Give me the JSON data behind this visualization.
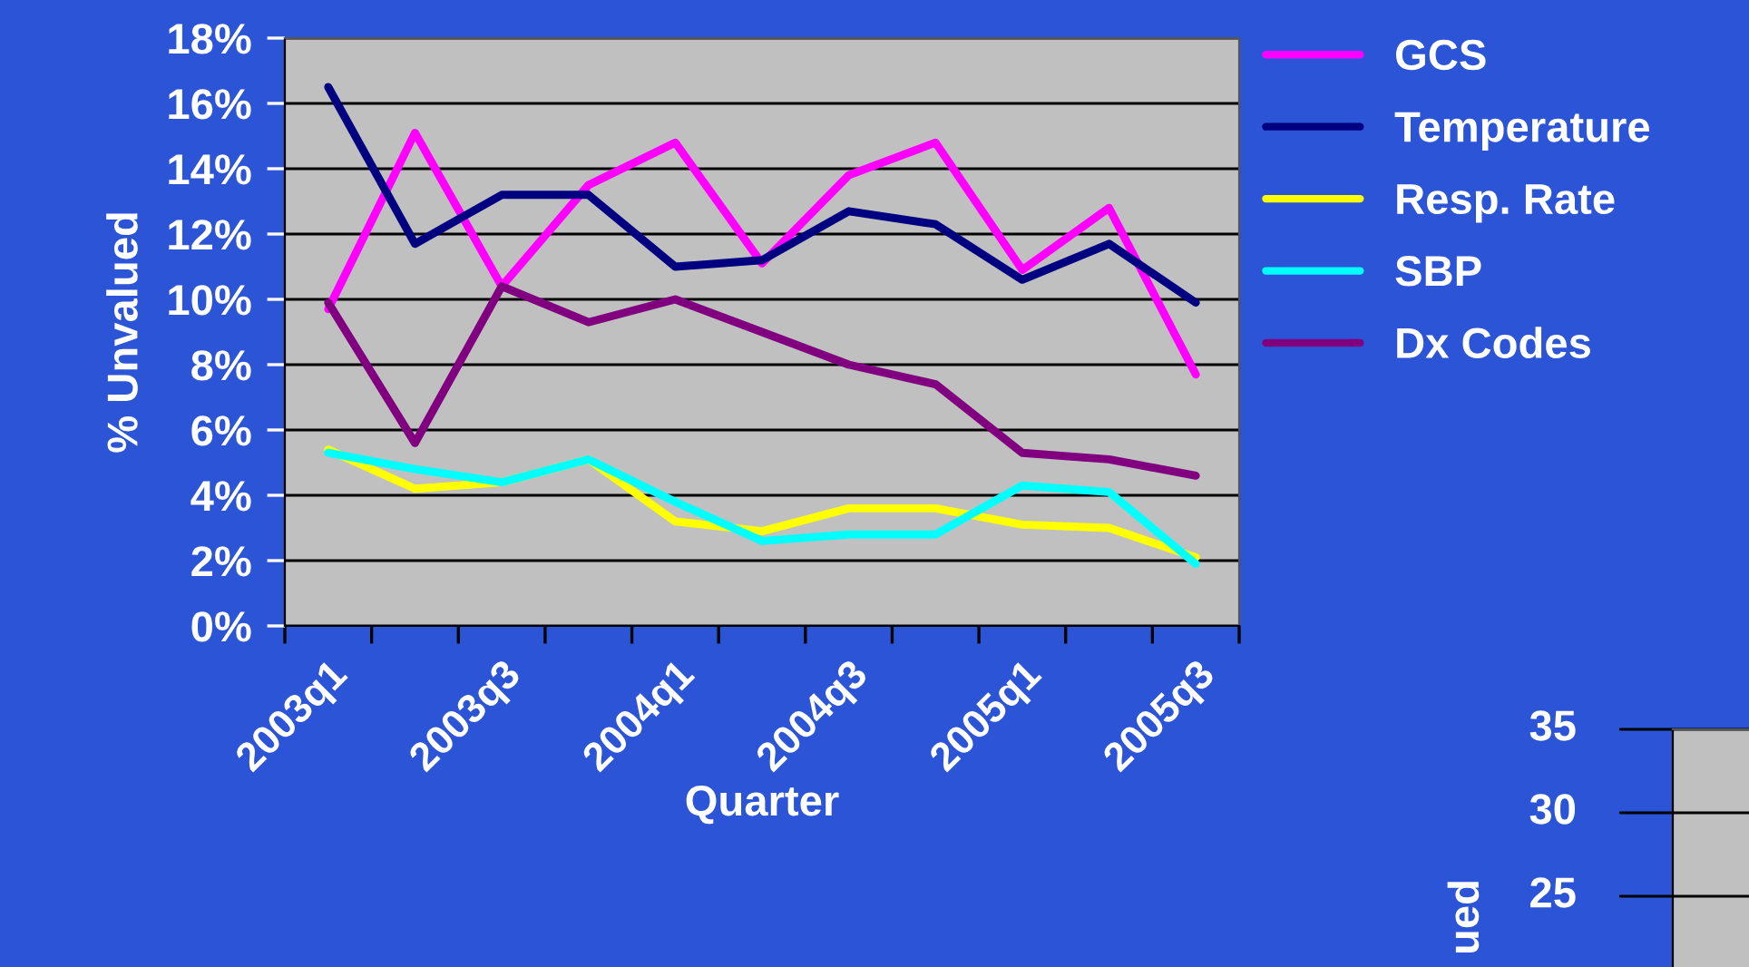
{
  "chart_data": [
    {
      "type": "line",
      "xlabel": "Quarter",
      "ylabel": "% Unvalued",
      "categories": [
        "2003q1",
        null,
        "2003q3",
        null,
        "2004q1",
        null,
        "2004q3",
        null,
        "2005q1",
        null,
        "2005q3"
      ],
      "series": [
        {
          "name": "GCS",
          "color": "#ff00ff",
          "values": [
            9.7,
            15.1,
            10.4,
            13.5,
            14.8,
            11.1,
            13.8,
            14.8,
            10.9,
            12.8,
            7.7
          ]
        },
        {
          "name": "Temperature",
          "color": "#000080",
          "values": [
            16.5,
            11.7,
            13.2,
            13.2,
            11.0,
            11.2,
            12.7,
            12.3,
            10.6,
            11.7,
            9.9
          ]
        },
        {
          "name": "Resp. Rate",
          "color": "#ffff00",
          "values": [
            5.4,
            4.2,
            4.4,
            5.1,
            3.2,
            2.9,
            3.6,
            3.6,
            3.1,
            3.0,
            2.1
          ]
        },
        {
          "name": "SBP",
          "color": "#00ffff",
          "values": [
            5.3,
            4.8,
            4.4,
            5.1,
            3.8,
            2.6,
            2.8,
            2.8,
            4.3,
            4.1,
            1.9
          ]
        },
        {
          "name": "Dx Codes",
          "color": "#800080",
          "values": [
            9.9,
            5.6,
            10.4,
            9.3,
            10.0,
            9.0,
            8.0,
            7.4,
            5.3,
            5.1,
            4.6
          ]
        }
      ],
      "ylim": [
        0,
        18
      ],
      "yticks": [
        {
          "value": 0,
          "label": "0%"
        },
        {
          "value": 2,
          "label": "2%"
        },
        {
          "value": 4,
          "label": "4%"
        },
        {
          "value": 6,
          "label": "6%"
        },
        {
          "value": 8,
          "label": "8%"
        },
        {
          "value": 10,
          "label": "10%"
        },
        {
          "value": 12,
          "label": "12%"
        },
        {
          "value": 14,
          "label": "14%"
        },
        {
          "value": 16,
          "label": "16%"
        },
        {
          "value": 18,
          "label": "18%"
        }
      ],
      "grid": "y",
      "legend": "right",
      "marker": "none",
      "line_style": "solid"
    },
    {
      "type": "other",
      "ylabel": "ued",
      "annotations": [
        "35",
        "30",
        "25"
      ]
    }
  ]
}
